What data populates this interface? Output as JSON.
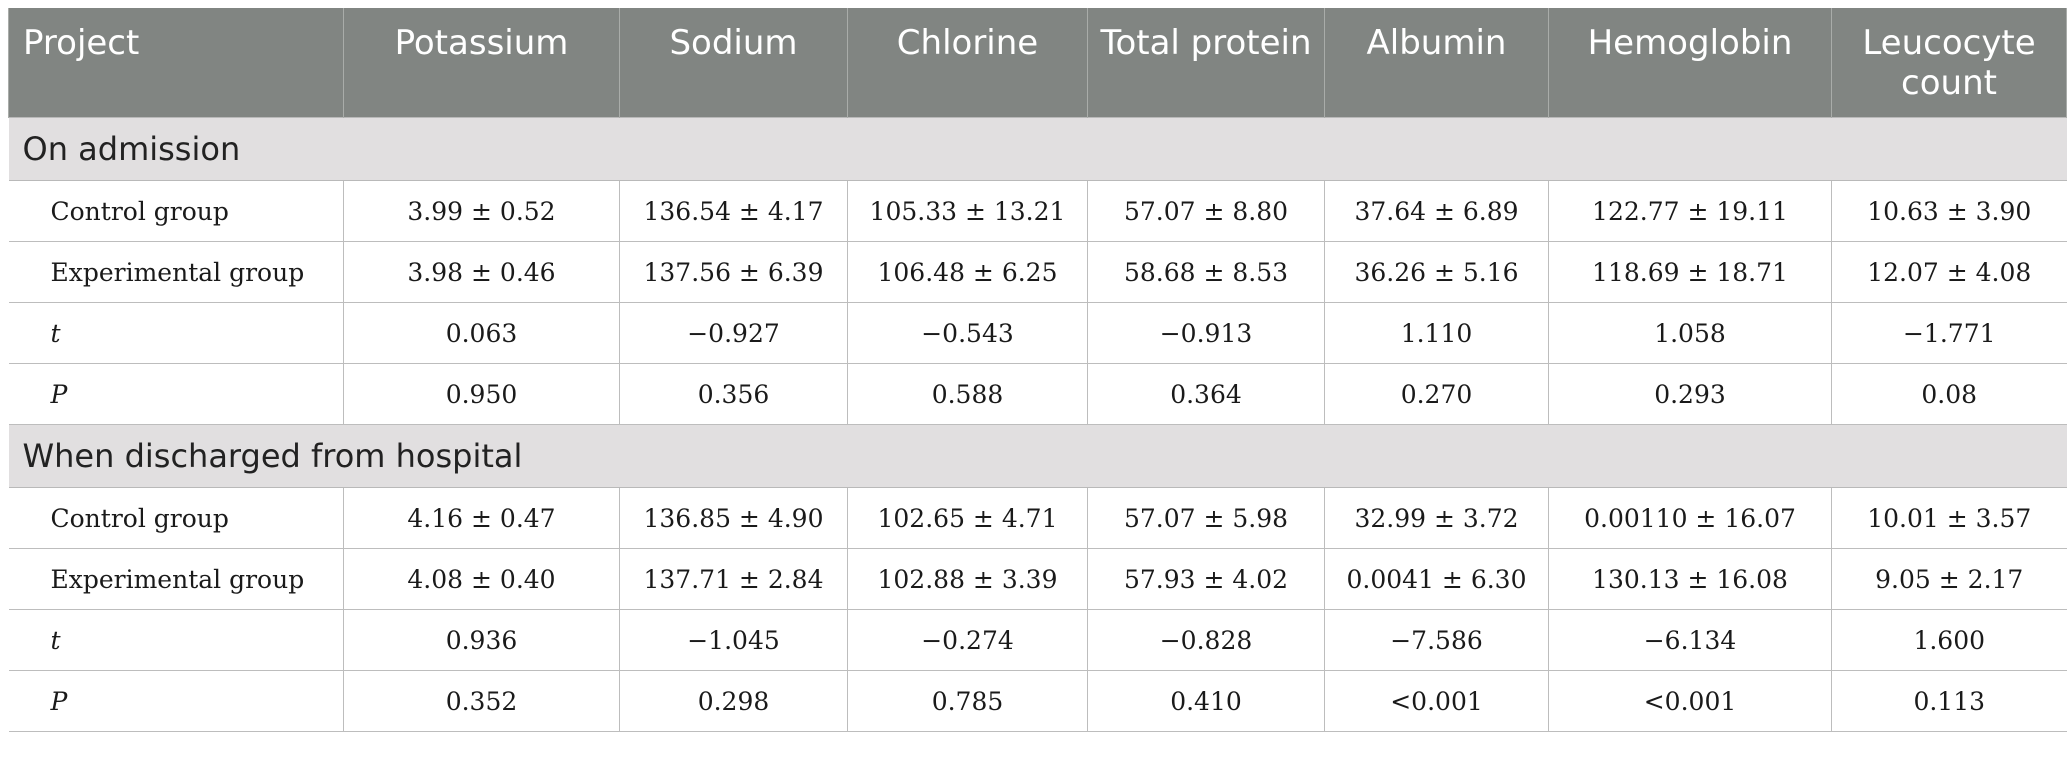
{
  "table": {
    "headers": [
      "Project",
      "Potassium",
      "Sodium",
      "Chlorine",
      "Total protein",
      "Albumin",
      "Hemoglobin",
      "Leucocyte count"
    ],
    "sections": [
      {
        "title": "On admission",
        "rows": [
          {
            "label": "Control group",
            "italic": false,
            "values": [
              "3.99 ± 0.52",
              "136.54 ± 4.17",
              "105.33 ± 13.21",
              "57.07 ± 8.80",
              "37.64 ± 6.89",
              "122.77 ± 19.11",
              "10.63 ± 3.90"
            ]
          },
          {
            "label": "Experimental group",
            "italic": false,
            "values": [
              "3.98 ± 0.46",
              "137.56 ± 6.39",
              "106.48 ± 6.25",
              "58.68 ± 8.53",
              "36.26 ± 5.16",
              "118.69 ± 18.71",
              "12.07 ± 4.08"
            ]
          },
          {
            "label": "t",
            "italic": true,
            "values": [
              "0.063",
              "−0.927",
              "−0.543",
              "−0.913",
              "1.110",
              "1.058",
              "−1.771"
            ]
          },
          {
            "label": "P",
            "italic": true,
            "values": [
              "0.950",
              "0.356",
              "0.588",
              "0.364",
              "0.270",
              "0.293",
              "0.08"
            ]
          }
        ]
      },
      {
        "title": "When discharged from hospital",
        "rows": [
          {
            "label": "Control group",
            "italic": false,
            "values": [
              "4.16 ± 0.47",
              "136.85 ± 4.90",
              "102.65 ± 4.71",
              "57.07 ± 5.98",
              "32.99 ± 3.72",
              "0.00110 ± 16.07",
              "10.01 ± 3.57"
            ]
          },
          {
            "label": "Experimental group",
            "italic": false,
            "values": [
              "4.08 ± 0.40",
              "137.71 ± 2.84",
              "102.88 ± 3.39",
              "57.93 ± 4.02",
              "0.0041 ± 6.30",
              "130.13 ± 16.08",
              "9.05 ± 2.17"
            ]
          },
          {
            "label": "t",
            "italic": true,
            "values": [
              "0.936",
              "−1.045",
              "−0.274",
              "−0.828",
              "−7.586",
              "−6.134",
              "1.600"
            ]
          },
          {
            "label": "P",
            "italic": true,
            "values": [
              "0.352",
              "0.298",
              "0.785",
              "0.410",
              "<0.001",
              "<0.001",
              "0.113"
            ]
          }
        ]
      }
    ]
  }
}
